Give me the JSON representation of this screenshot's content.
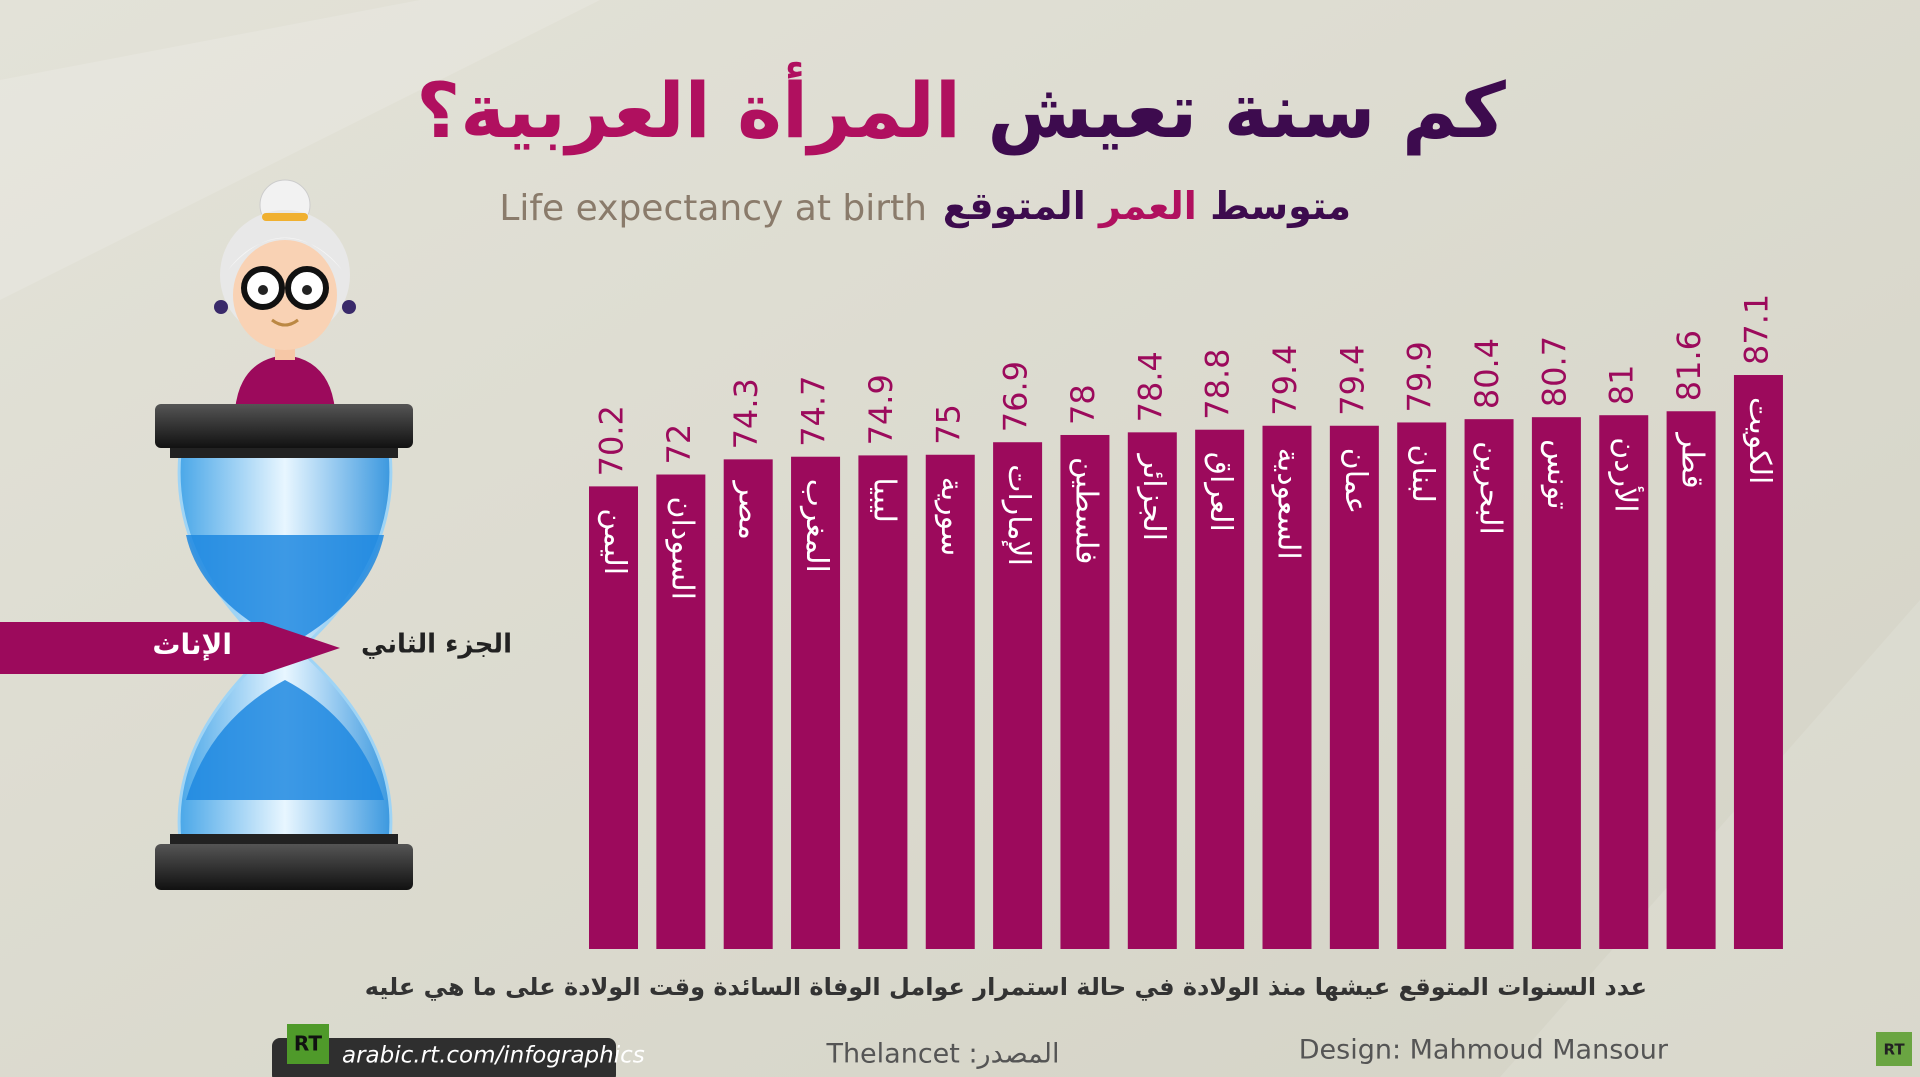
{
  "chart_data": {
    "type": "bar",
    "title_parts": [
      "كم سنة تعيش",
      "المرأة العربية؟"
    ],
    "subtitle_parts": [
      "متوسط",
      "العمر",
      "المتوقع"
    ],
    "subtitle_en": "Life expectancy at birth",
    "categories": [
      "اليمن",
      "السودان",
      "مصر",
      "المغرب",
      "ليبيا",
      "سورية",
      "الإمارات",
      "فلسطين",
      "الجزائر",
      "العراق",
      "السعودية",
      "عمان",
      "لبنان",
      "البحرين",
      "تونس",
      "الأردن",
      "قطر",
      "الكويت"
    ],
    "values": [
      70.2,
      72,
      74.3,
      74.7,
      74.9,
      75,
      76.9,
      78,
      78.4,
      78.8,
      79.4,
      79.4,
      79.9,
      80.4,
      80.7,
      81,
      81.6,
      87.1
    ],
    "color": "#9c0a5c",
    "note": "عدد السنوات المتوقع عيشها منذ الولادة في حالة استمرار عوامل الوفاة السائدة وقت الولادة على ما هي عليه",
    "source": "المصدر: Thelancet",
    "design": "Design: Mahmoud Mansour",
    "website": "arabic.rt.com/infographics",
    "logo": "RT",
    "banner": "الإناث",
    "part": "الجزء الثاني"
  }
}
